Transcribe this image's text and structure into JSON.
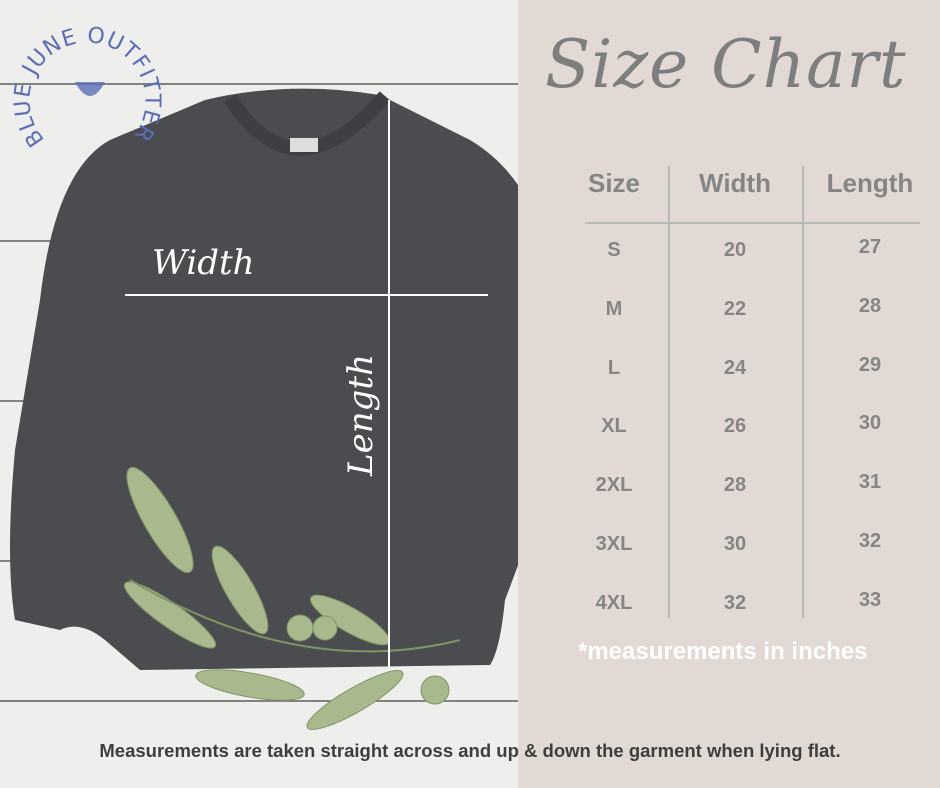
{
  "logo": {
    "text": "BLUE JUNE OUTFITTERS",
    "color": "#5a6db5"
  },
  "title": "Size Chart",
  "garment_labels": {
    "width": "Width",
    "length": "Length"
  },
  "table": {
    "headers": [
      "Size",
      "Width",
      "Length"
    ],
    "rows": [
      [
        "S",
        "20",
        "27"
      ],
      [
        "M",
        "22",
        "28"
      ],
      [
        "L",
        "24",
        "29"
      ],
      [
        "XL",
        "26",
        "30"
      ],
      [
        "2XL",
        "28",
        "31"
      ],
      [
        "3XL",
        "30",
        "32"
      ],
      [
        "4XL",
        "32",
        "33"
      ]
    ]
  },
  "note": "*measurements in inches",
  "footer": "Measurements are taken straight across and up & down the garment when lying flat.",
  "colors": {
    "panel": "#e3d9d4",
    "text": "#858585",
    "garment": "#4b4c4f"
  }
}
